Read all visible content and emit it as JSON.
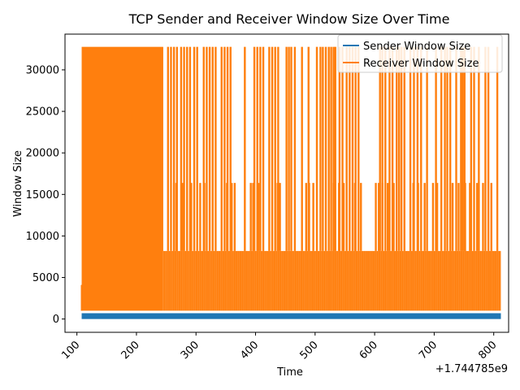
{
  "chart_data": {
    "type": "line",
    "title": "TCP Sender and Receiver Window Size Over Time",
    "xlabel": "Time",
    "ylabel": "Window Size",
    "x_offset_label": "+1.744785e9",
    "xlim": [
      80,
      825
    ],
    "ylim": [
      -1600,
      34300
    ],
    "x_ticks": [
      100,
      200,
      300,
      400,
      500,
      600,
      700,
      800
    ],
    "y_ticks": [
      0,
      5000,
      10000,
      15000,
      20000,
      25000,
      30000
    ],
    "grid": false,
    "legend_position": "top-right",
    "x_range": [
      108,
      812
    ],
    "series": [
      {
        "name": "Sender Window Size",
        "color": "#1f77b4",
        "band_low": 0,
        "band_high": 700
      },
      {
        "name": "Receiver Window Size",
        "color": "#ff7f0e",
        "levels": [
          1000,
          4096,
          8192,
          16384,
          32768
        ],
        "segments": [
          {
            "from": 108,
            "to": 245,
            "high": 32768
          },
          {
            "from": 245,
            "to": 365,
            "high": 32768
          },
          {
            "from": 365,
            "to": 580,
            "high": 32768
          },
          {
            "from": 580,
            "to": 812,
            "high": 32768
          }
        ],
        "spikes_32768": [
          112,
          115,
          118,
          121,
          124,
          127,
          130,
          133,
          136,
          139,
          142,
          145,
          150,
          155,
          160,
          165,
          170,
          175,
          180,
          185,
          190,
          195,
          200,
          205,
          210,
          215,
          220,
          228,
          233,
          238,
          243,
          253,
          258,
          263,
          268,
          275,
          280,
          285,
          290,
          297,
          302,
          313,
          318,
          323,
          328,
          333,
          343,
          348,
          353,
          358,
          382,
          398,
          403,
          408,
          413,
          423,
          428,
          433,
          438,
          452,
          456,
          460,
          466,
          478,
          489,
          503,
          509,
          513,
          518,
          523,
          527,
          531,
          534,
          541,
          546,
          553,
          558,
          563,
          568,
          573,
          609,
          613,
          618,
          625,
          630,
          637,
          641,
          645,
          650,
          660,
          666,
          672,
          678,
          688,
          703,
          712,
          718,
          722,
          727,
          737,
          745,
          748,
          751,
          762,
          767,
          775,
          786,
          791,
          806
        ],
        "spikes_16384": [
          222,
          228,
          232,
          236,
          263,
          267,
          278,
          292,
          307,
          314,
          352,
          360,
          365,
          392,
          396,
          405,
          437,
          441,
          485,
          490,
          497,
          531,
          540,
          548,
          567,
          577,
          602,
          607,
          613,
          622,
          632,
          665,
          673,
          684,
          698,
          705,
          727,
          731,
          741,
          752,
          760,
          772,
          782,
          796
        ],
        "base_8192_from": 245
      }
    ]
  }
}
